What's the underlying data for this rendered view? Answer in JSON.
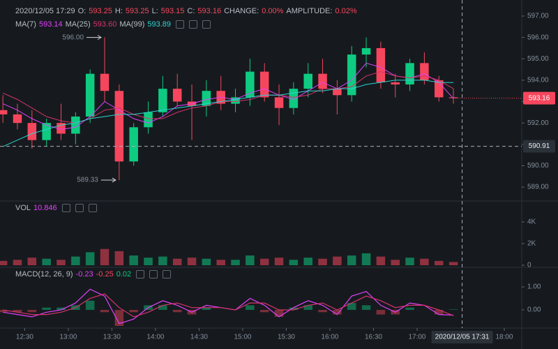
{
  "header": {
    "datetime": "2020/12/05 17:29",
    "o_label": "O:",
    "o": "593.25",
    "h_label": "H:",
    "h": "593.25",
    "l_label": "L:",
    "l": "593.15",
    "c_label": "C:",
    "c": "593.16",
    "change_label": "CHANGE:",
    "change": "0.00%",
    "amplitude_label": "AMPLITUDE:",
    "amplitude": "0.02%"
  },
  "x_axis": {
    "xlim": [
      "12:13",
      "18:12"
    ],
    "xticks": [
      "12:30",
      "13:00",
      "13:30",
      "14:00",
      "14:30",
      "15:00",
      "15:30",
      "16:00",
      "16:30",
      "17:00",
      "18:00"
    ],
    "crosshair_label": "2020/12/05 17:31"
  },
  "chart_data": [
    {
      "type": "candlestick",
      "x": [
        "12:15",
        "12:25",
        "12:35",
        "12:45",
        "12:55",
        "13:05",
        "13:15",
        "13:25",
        "13:35",
        "13:45",
        "13:55",
        "14:05",
        "14:15",
        "14:25",
        "14:35",
        "14:45",
        "14:55",
        "15:05",
        "15:15",
        "15:25",
        "15:35",
        "15:45",
        "15:55",
        "16:05",
        "16:15",
        "16:25",
        "16:35",
        "16:45",
        "16:55",
        "17:05",
        "17:15",
        "17:25"
      ],
      "open": [
        592.6,
        592.4,
        592.0,
        591.2,
        592.0,
        591.5,
        592.3,
        594.3,
        593.5,
        590.2,
        591.8,
        592.5,
        593.6,
        593.0,
        592.8,
        593.5,
        592.9,
        593.2,
        594.4,
        593.2,
        592.7,
        593.6,
        594.3,
        593.6,
        593.3,
        595.2,
        595.5,
        593.9,
        593.8,
        594.8,
        594.0,
        593.2
      ],
      "high": [
        593.3,
        592.9,
        592.6,
        592.2,
        592.9,
        592.5,
        594.5,
        596.0,
        593.8,
        592.0,
        593.0,
        594.2,
        594.3,
        593.8,
        594.0,
        594.2,
        593.6,
        595.0,
        594.8,
        593.8,
        593.9,
        594.8,
        595.0,
        594.0,
        595.6,
        596.0,
        595.8,
        594.3,
        595.0,
        595.3,
        594.2,
        593.6
      ],
      "low": [
        592.0,
        591.7,
        590.8,
        590.9,
        591.2,
        591.0,
        592.0,
        593.0,
        589.33,
        590.0,
        591.5,
        592.3,
        592.8,
        591.2,
        592.3,
        592.6,
        592.5,
        592.8,
        593.0,
        591.9,
        592.4,
        593.2,
        593.4,
        592.4,
        593.0,
        594.6,
        593.6,
        593.2,
        593.5,
        593.8,
        593.0,
        592.9
      ],
      "close": [
        592.4,
        592.0,
        591.2,
        592.0,
        591.5,
        592.3,
        594.3,
        593.5,
        590.2,
        591.8,
        592.5,
        593.6,
        593.0,
        592.8,
        593.5,
        592.9,
        593.2,
        594.4,
        593.2,
        592.7,
        593.6,
        594.3,
        593.6,
        593.3,
        595.2,
        595.5,
        593.9,
        593.8,
        594.8,
        594.0,
        593.2,
        593.16
      ],
      "up_color": "#0ecb81",
      "down_color": "#f6465d",
      "ylim": [
        588.35,
        597.75
      ],
      "yticks": [
        {
          "value": 589,
          "label": "589.00"
        },
        {
          "value": 590,
          "label": "590.00"
        },
        {
          "value": 591,
          "label": "591.00"
        },
        {
          "value": 592,
          "label": "592.00"
        },
        {
          "value": 593,
          "label": "593.00"
        },
        {
          "value": 594,
          "label": "594.00"
        },
        {
          "value": 595,
          "label": "595.00"
        },
        {
          "value": 596,
          "label": "596.00"
        },
        {
          "value": 597,
          "label": "597.00"
        }
      ],
      "series": [
        {
          "name": "MA(7)",
          "value_label": "593.14",
          "color": "#e040fb",
          "values": [
            592.9,
            592.6,
            592.2,
            591.9,
            591.7,
            591.8,
            592.3,
            593.0,
            592.6,
            592.2,
            592.0,
            592.3,
            592.8,
            592.9,
            593.1,
            593.2,
            593.1,
            593.4,
            593.6,
            593.3,
            593.1,
            593.5,
            593.9,
            593.6,
            594.0,
            594.8,
            594.6,
            594.2,
            594.1,
            594.3,
            593.9,
            593.14
          ]
        },
        {
          "name": "MA(25)",
          "value_label": "593.60",
          "color": "#d6336c",
          "values": [
            593.4,
            593.1,
            592.7,
            592.3,
            592.1,
            592.0,
            592.2,
            592.6,
            592.7,
            592.4,
            592.2,
            592.2,
            592.5,
            592.7,
            592.8,
            593.0,
            593.0,
            593.1,
            593.3,
            593.3,
            593.2,
            593.3,
            593.6,
            593.6,
            593.7,
            594.2,
            594.4,
            594.2,
            594.1,
            594.2,
            594.0,
            593.6
          ]
        },
        {
          "name": "MA(99)",
          "value_label": "593.89",
          "color": "#2dd4d4",
          "values": [
            590.9,
            591.2,
            591.5,
            591.7,
            591.9,
            592.0,
            592.2,
            592.3,
            592.4,
            592.4,
            592.5,
            592.6,
            592.7,
            592.8,
            592.9,
            593.0,
            593.1,
            593.2,
            593.3,
            593.3,
            593.4,
            593.5,
            593.5,
            593.6,
            593.6,
            593.8,
            593.9,
            594.0,
            594.0,
            594.0,
            593.9,
            593.89
          ]
        }
      ],
      "annotations": [
        {
          "label": "596.00",
          "value": 596,
          "x": "13:25"
        },
        {
          "label": "589.33",
          "value": 589.33,
          "x": "13:35"
        }
      ],
      "last_price": {
        "value": 593.16,
        "label": "593.16"
      },
      "crosshair": {
        "value": 590.91,
        "label": "590.91"
      }
    },
    {
      "type": "bar",
      "title": "VOL",
      "value_label": "10.846",
      "values": [
        400,
        500,
        700,
        600,
        500,
        800,
        1200,
        1500,
        1300,
        900,
        700,
        800,
        600,
        700,
        600,
        500,
        500,
        900,
        600,
        700,
        500,
        700,
        600,
        800,
        900,
        1100,
        800,
        500,
        700,
        600,
        400,
        300
      ],
      "ylim": [
        -194,
        5935
      ],
      "yticks": [
        {
          "value": 0,
          "label": "0"
        },
        {
          "value": 2000,
          "label": "2K"
        },
        {
          "value": 4000,
          "label": "4K"
        }
      ]
    },
    {
      "type": "macd",
      "title": "MACD(12, 26, 9)",
      "value_labels": [
        "-0.23",
        "-0.25",
        "0.02"
      ],
      "label_colors": [
        "#e040fb",
        "#f6465d",
        "#0ecb81"
      ],
      "series": [
        {
          "color": "#e040fb",
          "values": [
            -0.1,
            -0.2,
            -0.3,
            -0.1,
            0.0,
            0.3,
            0.9,
            0.6,
            -0.6,
            -0.4,
            0.1,
            0.4,
            0.2,
            -0.1,
            0.2,
            0.1,
            0.0,
            0.5,
            0.2,
            -0.3,
            0.1,
            0.4,
            0.2,
            -0.2,
            0.6,
            0.8,
            0.2,
            -0.1,
            0.3,
            0.2,
            -0.2,
            -0.23
          ]
        },
        {
          "color": "#d6336c",
          "values": [
            0.0,
            -0.1,
            -0.2,
            -0.2,
            -0.1,
            0.1,
            0.5,
            0.7,
            0.1,
            -0.3,
            -0.1,
            0.2,
            0.3,
            0.1,
            0.1,
            0.1,
            0.0,
            0.3,
            0.3,
            0.0,
            0.0,
            0.2,
            0.3,
            0.0,
            0.3,
            0.6,
            0.4,
            0.1,
            0.2,
            0.2,
            0.0,
            -0.25
          ]
        }
      ],
      "histogram": {
        "up_color": "#0ecb81",
        "down_color": "#f6465d",
        "values": [
          -0.1,
          -0.1,
          -0.1,
          0.1,
          0.1,
          0.2,
          0.4,
          -0.1,
          -0.7,
          -0.1,
          0.2,
          0.2,
          -0.1,
          -0.2,
          0.1,
          0.0,
          0.0,
          0.2,
          -0.1,
          -0.3,
          0.1,
          0.2,
          -0.1,
          -0.2,
          0.3,
          0.2,
          -0.2,
          -0.2,
          0.1,
          0.0,
          -0.2,
          0.02
        ]
      },
      "ylim": [
        -0.79,
        1.85
      ],
      "yticks": [
        {
          "value": 0,
          "label": "0.00"
        },
        {
          "value": 1,
          "label": "1.00"
        }
      ]
    }
  ]
}
